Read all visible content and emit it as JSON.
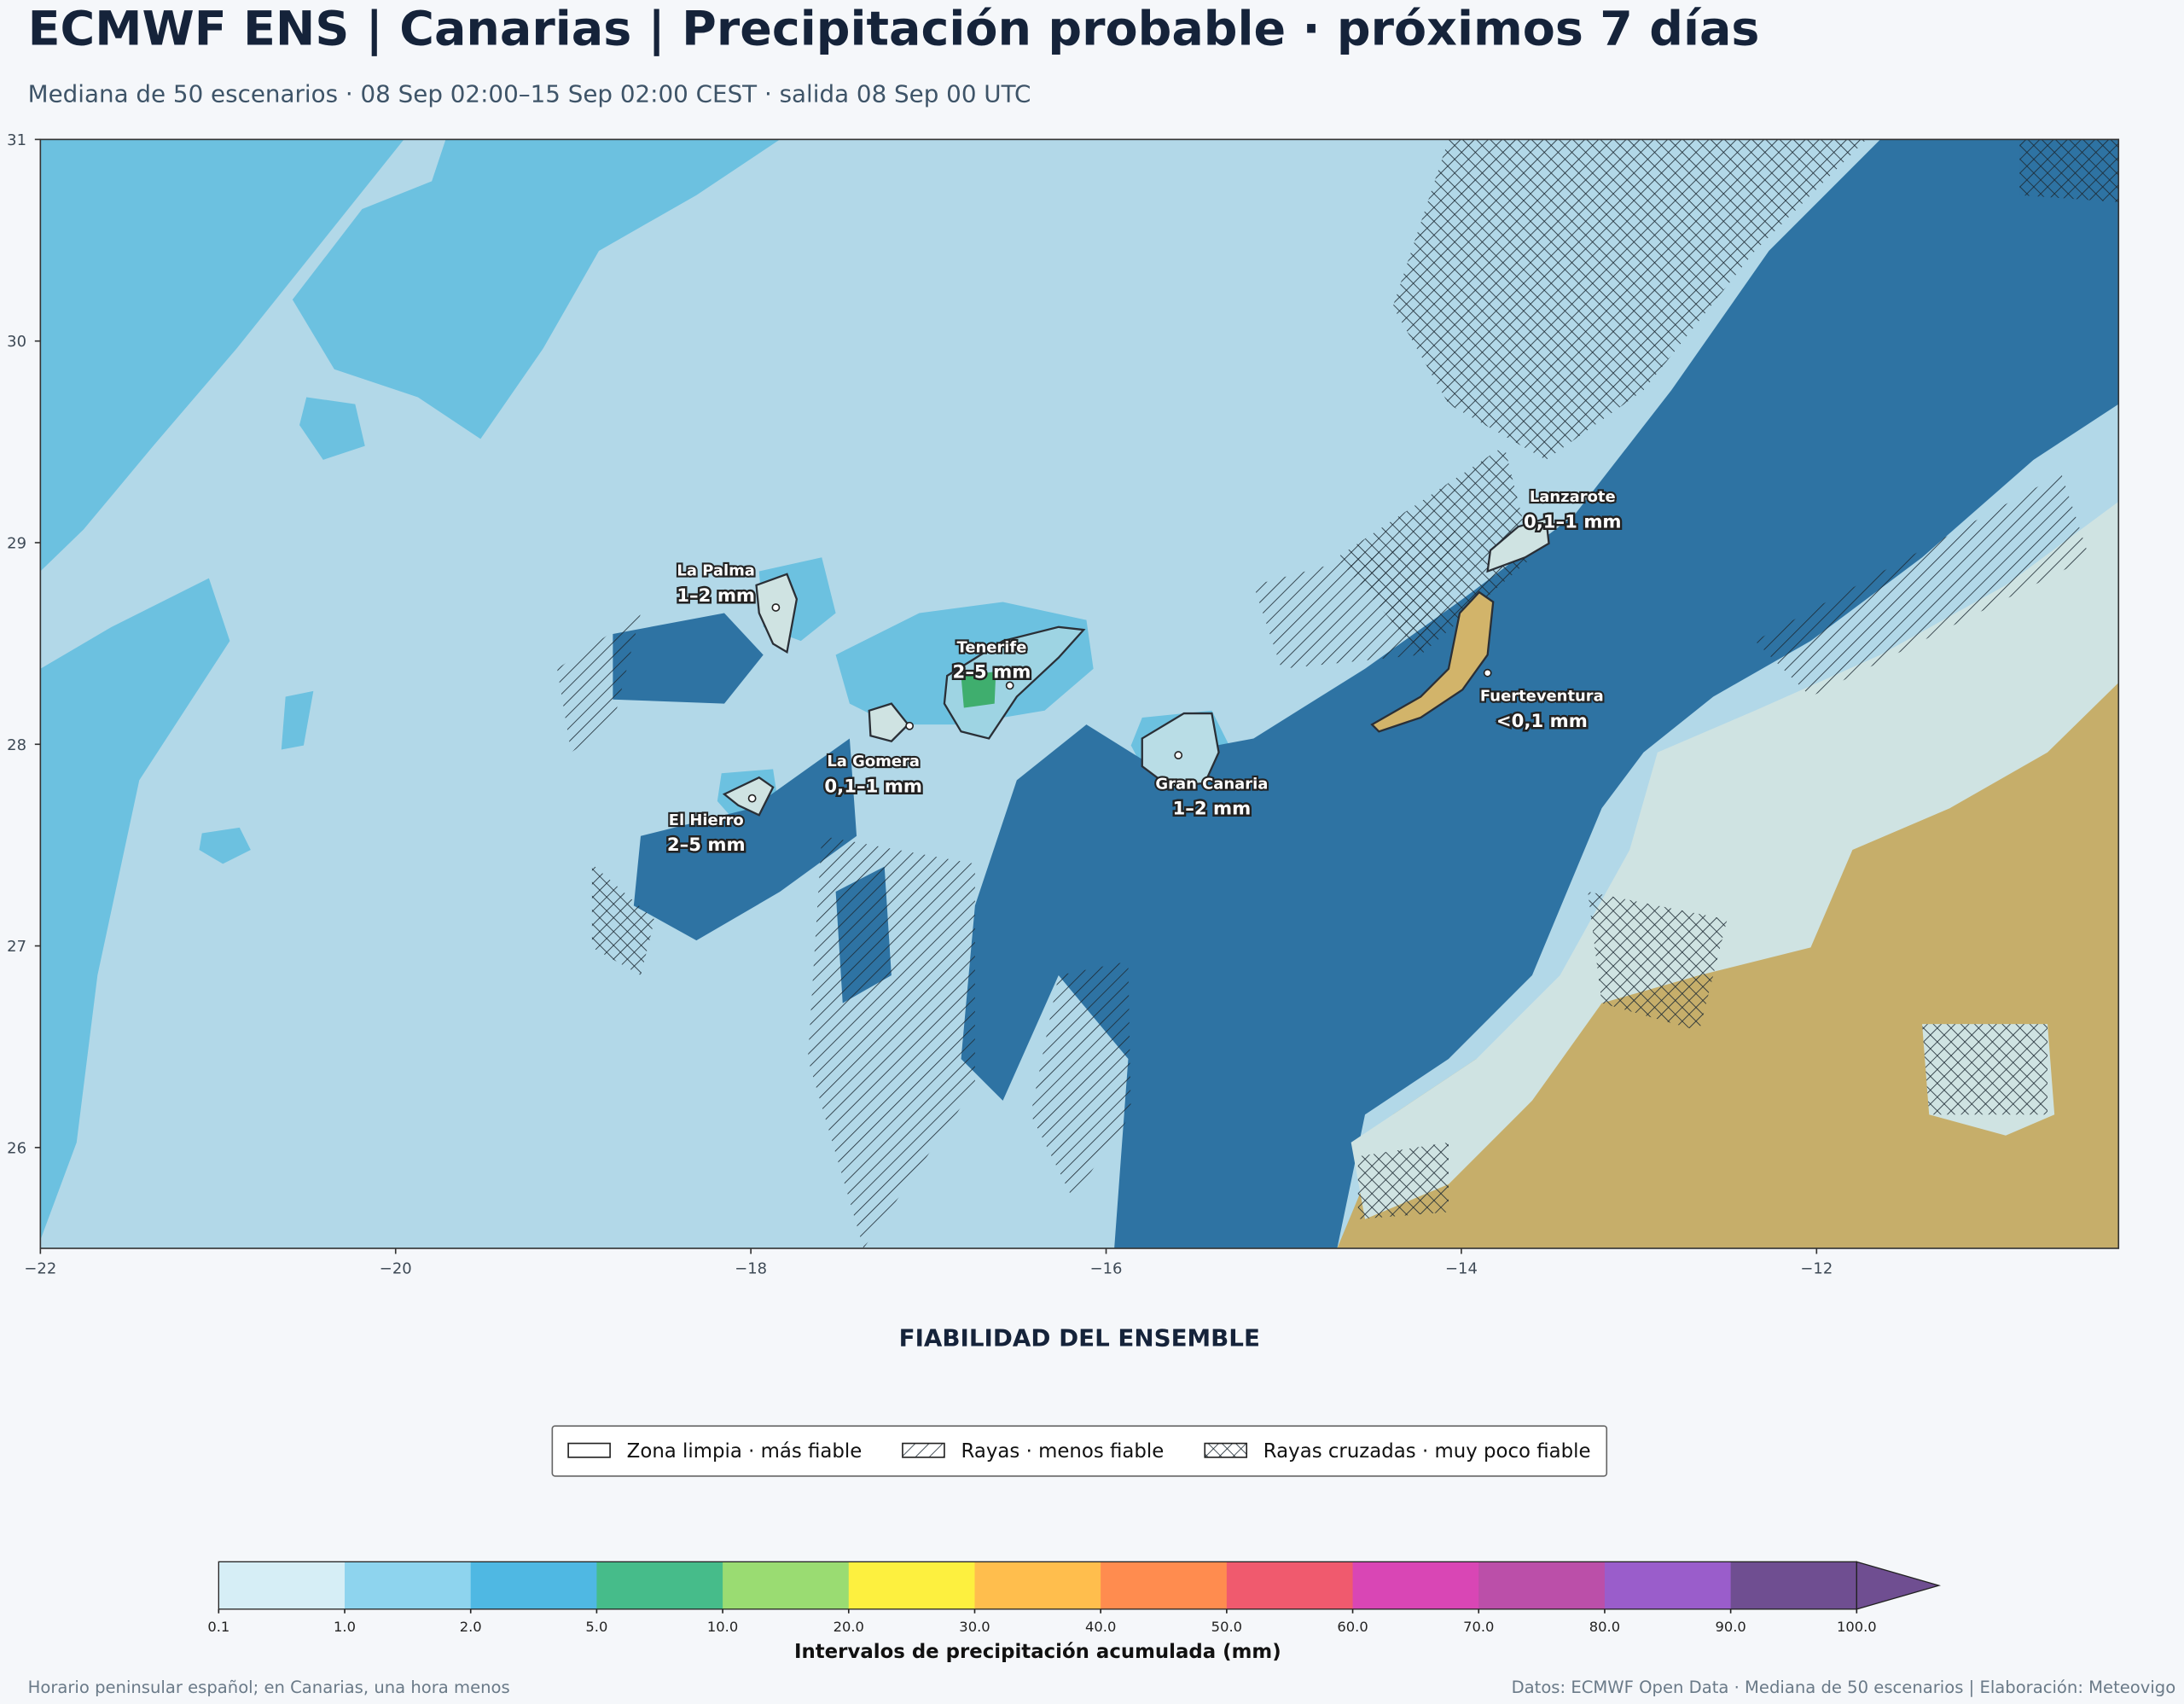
{
  "header": {
    "title": "ECMWF ENS | Canarias | Precipitación probable · próximos 7 días",
    "subtitle": "Mediana de 50 escenarios · 08 Sep 02:00–15 Sep 02:00 CEST · salida 08 Sep 00 UTC"
  },
  "chart_data": {
    "type": "map",
    "xlim": [
      -22,
      -10.3
    ],
    "ylim": [
      25.5,
      31
    ],
    "xticks": [
      {
        "value": -22,
        "label": "−22"
      },
      {
        "value": -20,
        "label": "−20"
      },
      {
        "value": -18,
        "label": "−18"
      },
      {
        "value": -16,
        "label": "−16"
      },
      {
        "value": -14,
        "label": "−14"
      },
      {
        "value": -12,
        "label": "−12"
      }
    ],
    "yticks": [
      26,
      27,
      28,
      29,
      30,
      31
    ],
    "labels": [
      {
        "name": "La Palma",
        "value": "1–2 mm"
      },
      {
        "name": "Tenerife",
        "value": "2–5 mm"
      },
      {
        "name": "La Gomera",
        "value": "0,1–1 mm"
      },
      {
        "name": "El Hierro",
        "value": "2–5 mm"
      },
      {
        "name": "Gran Canaria",
        "value": "1–2 mm"
      },
      {
        "name": "Lanzarote",
        "value": "0,1–1 mm"
      },
      {
        "name": "Fuerteventura",
        "value": "<0,1 mm"
      }
    ]
  },
  "reliability_legend": {
    "title": "FIABILIDAD DEL ENSEMBLE",
    "items": [
      "Zona limpia · más fiable",
      "Rayas · menos fiable",
      "Rayas cruzadas · muy poco fiable"
    ]
  },
  "colorbar": {
    "label": "Intervalos de precipitación acumulada (mm)",
    "bounds": [
      0.1,
      {
        "value": 1,
        "label": "1.0"
      },
      {
        "value": 2,
        "label": "2.0"
      },
      {
        "value": 5,
        "label": "5.0"
      },
      {
        "value": 10,
        "label": "10.0"
      },
      {
        "value": 20,
        "label": "20.0"
      },
      {
        "value": 30,
        "label": "30.0"
      },
      {
        "value": 40,
        "label": "40.0"
      },
      {
        "value": 50,
        "label": "50.0"
      },
      {
        "value": 60,
        "label": "60.0"
      },
      {
        "value": 70,
        "label": "70.0"
      },
      {
        "value": 80,
        "label": "80.0"
      },
      {
        "value": 90,
        "label": "90.0"
      },
      {
        "value": 100,
        "label": "100.0"
      }
    ],
    "colors": [
      "#d6eef6",
      "#8ed4ee",
      "#4fb8e3",
      "#46bc8a",
      "#9adc72",
      "#fdf03f",
      "#ffbe4d",
      "#ff8c4f",
      "#f05a6e",
      "#d946b5",
      "#bb4fa9",
      "#9a5dcb",
      "#6f4e91"
    ]
  },
  "footer": {
    "left": "Horario peninsular español; en Canarias, una hora menos",
    "right": "Datos: ECMWF Open Data · Mediana de 50 escenarios | Elaboración: Meteovigo"
  }
}
